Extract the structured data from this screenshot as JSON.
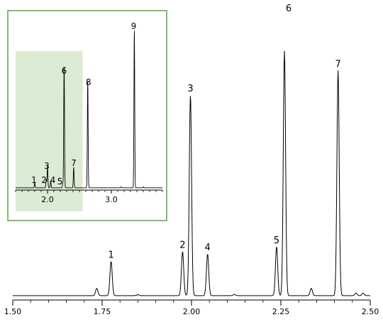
{
  "colors": {
    "trace": "#000000",
    "inset_border": "#5aa640",
    "inset_highlight": "#dcebd3"
  },
  "chart_data": [
    {
      "type": "line",
      "title": "",
      "xlabel": "",
      "ylabel": "",
      "xlim": [
        1.5,
        2.5
      ],
      "ylim": [
        0,
        100
      ],
      "x_ticks": [
        "1.50",
        "1.75",
        "2.00",
        "2.25",
        "2.50"
      ],
      "x_tick_values": [
        1.5,
        1.75,
        2.0,
        2.25,
        2.5
      ],
      "grid": false,
      "baseline": 1.5,
      "peaks": [
        {
          "label": "1",
          "x": 1.775,
          "height": 14
        },
        {
          "label": "2",
          "x": 1.975,
          "height": 18
        },
        {
          "label": "3",
          "x": 1.997,
          "height": 82
        },
        {
          "label": "4",
          "x": 2.045,
          "height": 17
        },
        {
          "label": "5",
          "x": 2.238,
          "height": 20
        },
        {
          "label": "6",
          "x": 2.26,
          "height": 100
        },
        {
          "label": "7",
          "x": 2.41,
          "height": 92
        }
      ],
      "minor_peaks": [
        {
          "x": 1.735,
          "height": 3
        },
        {
          "x": 1.85,
          "height": 0.4
        },
        {
          "x": 2.12,
          "height": 0.5
        },
        {
          "x": 2.335,
          "height": 3
        },
        {
          "x": 2.46,
          "height": 1
        },
        {
          "x": 2.48,
          "height": 1
        }
      ]
    },
    {
      "type": "line",
      "title": "",
      "xlabel": "",
      "ylabel": "",
      "xlim": [
        1.5,
        3.8
      ],
      "ylim": [
        0,
        100
      ],
      "x_ticks": [
        "2.0",
        "3.0"
      ],
      "x_tick_values": [
        2.0,
        3.0
      ],
      "highlight_range": [
        1.5,
        2.55
      ],
      "grid": false,
      "baseline": 1,
      "peaks": [
        {
          "label": "1",
          "x": 1.8,
          "height": 3
        },
        {
          "label": "2",
          "x": 1.98,
          "height": 5
        },
        {
          "label": "3",
          "x": 2.0,
          "height": 14
        },
        {
          "label": "4",
          "x": 2.05,
          "height": 4
        },
        {
          "label": "5",
          "x": 2.24,
          "height": 3
        },
        {
          "label": "6",
          "x": 2.26,
          "height": 78
        },
        {
          "label": "7",
          "x": 2.41,
          "height": 13
        },
        {
          "label": "8",
          "x": 2.63,
          "height": 68
        },
        {
          "label": "9",
          "x": 3.36,
          "height": 100
        }
      ],
      "minor_peaks": [
        {
          "x": 3.15,
          "height": 0.6
        },
        {
          "x": 3.5,
          "height": 0.6
        }
      ]
    }
  ]
}
